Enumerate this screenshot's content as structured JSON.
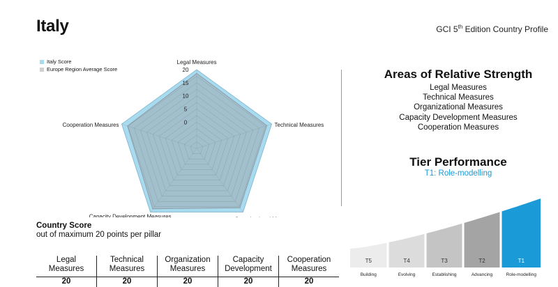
{
  "header": {
    "country": "Italy",
    "edition_prefix": "GCI 5",
    "edition_sup": "th",
    "edition_suffix": " Edition Country Profile"
  },
  "legend": [
    {
      "label": "Italy Score",
      "color": "#a8daf0"
    },
    {
      "label": "Europe Region Average Score",
      "color": "#d0d0d0"
    }
  ],
  "chart_data": {
    "type": "radar",
    "axes": [
      "Legal Measures",
      "Technical Measures",
      "Organizational Measures",
      "Capacity Development Measures",
      "Cooperation Measures"
    ],
    "ticks": [
      0,
      5,
      10,
      15,
      20
    ],
    "rmin": -10,
    "rmax": 20,
    "series": [
      {
        "name": "Italy Score",
        "values": [
          20,
          20,
          20,
          20,
          20
        ],
        "color": "#a8daf0"
      },
      {
        "name": "Europe Region Average Score",
        "values": [
          18.6,
          18.1,
          18.0,
          18.5,
          17.7
        ],
        "color": "#9aa9ae"
      }
    ]
  },
  "strengths": {
    "title": "Areas of Relative Strength",
    "items": [
      "Legal Measures",
      "Technical Measures",
      "Organizational Measures",
      "Capacity Development Measures",
      "Cooperation Measures"
    ]
  },
  "tier": {
    "title": "Tier Performance",
    "current": "T1: Role-modelling",
    "tiers": [
      {
        "code": "T5",
        "name": "Building",
        "color": "#ececec",
        "text": "#333333"
      },
      {
        "code": "T4",
        "name": "Evolving",
        "color": "#dcdcdc",
        "text": "#333333"
      },
      {
        "code": "T3",
        "name": "Establishing",
        "color": "#c4c4c4",
        "text": "#333333"
      },
      {
        "code": "T2",
        "name": "Advancing",
        "color": "#a4a4a4",
        "text": "#333333"
      },
      {
        "code": "T1",
        "name": "Role-modelling",
        "color": "#1a9bd7",
        "text": "#ffffff"
      }
    ]
  },
  "score": {
    "title": "Country Score",
    "subtitle": "out of maximum 20 points per pillar",
    "columns": [
      {
        "line1": "Legal",
        "line2": "Measures",
        "value": "20"
      },
      {
        "line1": "Technical",
        "line2": "Measures",
        "value": "20"
      },
      {
        "line1": "Organization",
        "line2": "Measures",
        "value": "20"
      },
      {
        "line1": "Capacity",
        "line2": "Development",
        "value": "20"
      },
      {
        "line1": "Cooperation",
        "line2": "Measures",
        "value": "20"
      }
    ]
  }
}
